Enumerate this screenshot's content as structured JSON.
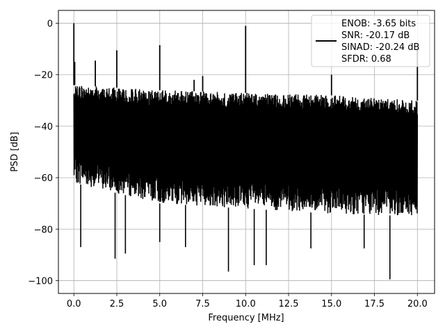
{
  "chart_data": {
    "type": "line",
    "title": "",
    "xlabel": "Frequency [MHz]",
    "ylabel": "PSD [dB]",
    "xlim": [
      -0.9,
      21.0
    ],
    "ylim": [
      -105,
      5
    ],
    "x_ticks": [
      0.0,
      2.5,
      5.0,
      7.5,
      10.0,
      12.5,
      15.0,
      17.5,
      20.0
    ],
    "x_tick_labels": [
      "0.0",
      "2.5",
      "5.0",
      "7.5",
      "10.0",
      "12.5",
      "15.0",
      "17.5",
      "20.0"
    ],
    "y_ticks": [
      0,
      -20,
      -40,
      -60,
      -80,
      -100
    ],
    "y_tick_labels": [
      "0",
      "−20",
      "−40",
      "−60",
      "−80",
      "−100"
    ],
    "grid": true,
    "legend_position": "top-right",
    "line_color": "#000000",
    "series": [
      {
        "noise_floor": {
          "x_range": [
            0.0,
            20.0
          ],
          "upper_envelope_db": [
            [
              0.0,
              -24
            ],
            [
              5.0,
              -26
            ],
            [
              10.0,
              -27
            ],
            [
              15.0,
              -28
            ],
            [
              20.0,
              -30
            ]
          ],
          "lower_envelope_db": [
            [
              0.0,
              -62
            ],
            [
              5.0,
              -70
            ],
            [
              10.0,
              -72
            ],
            [
              15.0,
              -74
            ],
            [
              20.0,
              -75
            ]
          ]
        },
        "spurs": [
          {
            "x": 0.0,
            "y": 0
          },
          {
            "x": 0.05,
            "y": -15
          },
          {
            "x": 1.25,
            "y": -14.5
          },
          {
            "x": 2.5,
            "y": -10.5
          },
          {
            "x": 5.0,
            "y": -8.5
          },
          {
            "x": 7.0,
            "y": -22
          },
          {
            "x": 7.5,
            "y": -20.5
          },
          {
            "x": 10.0,
            "y": -1
          },
          {
            "x": 15.0,
            "y": -20
          },
          {
            "x": 20.0,
            "y": -10
          }
        ],
        "dips": [
          {
            "x": 0.4,
            "y": -87
          },
          {
            "x": 2.4,
            "y": -91.5
          },
          {
            "x": 3.0,
            "y": -89.5
          },
          {
            "x": 5.0,
            "y": -85
          },
          {
            "x": 6.5,
            "y": -87
          },
          {
            "x": 9.0,
            "y": -96.5
          },
          {
            "x": 10.5,
            "y": -94
          },
          {
            "x": 11.2,
            "y": -94
          },
          {
            "x": 13.8,
            "y": -87.5
          },
          {
            "x": 16.9,
            "y": -87.5
          },
          {
            "x": 18.4,
            "y": -99.5
          }
        ]
      }
    ]
  },
  "legend": {
    "lines": [
      "ENOB: -3.65 bits",
      "SNR: -20.17 dB",
      "SINAD: -20.24 dB",
      "SFDR: 0.68"
    ]
  }
}
